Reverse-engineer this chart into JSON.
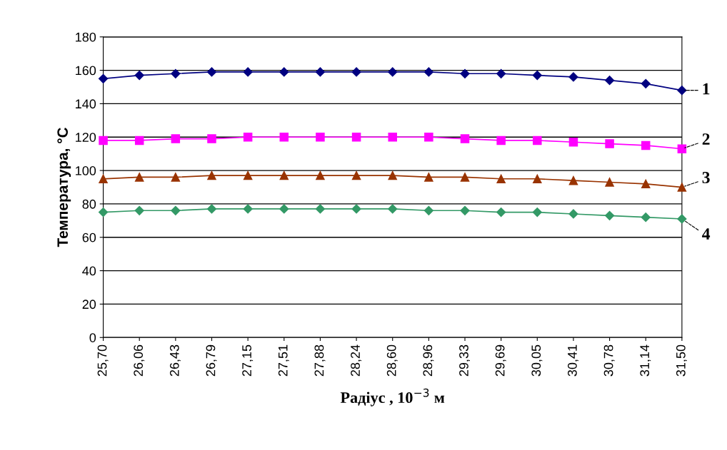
{
  "chart_data": {
    "type": "line",
    "xlabel": "Радіус , 10$^{−3}$ м",
    "ylabel": "Температура, °C",
    "categories": [
      "25,70",
      "26,06",
      "26,43",
      "26,79",
      "27,15",
      "27,51",
      "27,88",
      "28,24",
      "28,60",
      "28,96",
      "29,33",
      "29,69",
      "30,05",
      "30,41",
      "30,78",
      "31,14",
      "31,50"
    ],
    "series": [
      {
        "name": "1",
        "color": "#000080",
        "marker": "diamond",
        "values": [
          155,
          157,
          158,
          159,
          159,
          159,
          159,
          159,
          159,
          159,
          158,
          158,
          157,
          156,
          154,
          152,
          148
        ]
      },
      {
        "name": "2",
        "color": "#ff00ff",
        "marker": "square",
        "values": [
          118,
          118,
          119,
          119,
          120,
          120,
          120,
          120,
          120,
          120,
          119,
          118,
          118,
          117,
          116,
          115,
          113
        ]
      },
      {
        "name": "3",
        "color": "#993300",
        "marker": "triangle",
        "values": [
          95,
          96,
          96,
          97,
          97,
          97,
          97,
          97,
          97,
          96,
          96,
          95,
          95,
          94,
          93,
          92,
          90
        ]
      },
      {
        "name": "4",
        "color": "#339966",
        "marker": "diamond",
        "values": [
          75,
          76,
          76,
          77,
          77,
          77,
          77,
          77,
          77,
          76,
          76,
          75,
          75,
          74,
          73,
          72,
          71
        ]
      }
    ],
    "ylim": [
      0,
      180
    ],
    "yticks": [
      0,
      20,
      40,
      60,
      80,
      100,
      120,
      140,
      160,
      180
    ],
    "grid": "y",
    "line_style": "solid"
  }
}
